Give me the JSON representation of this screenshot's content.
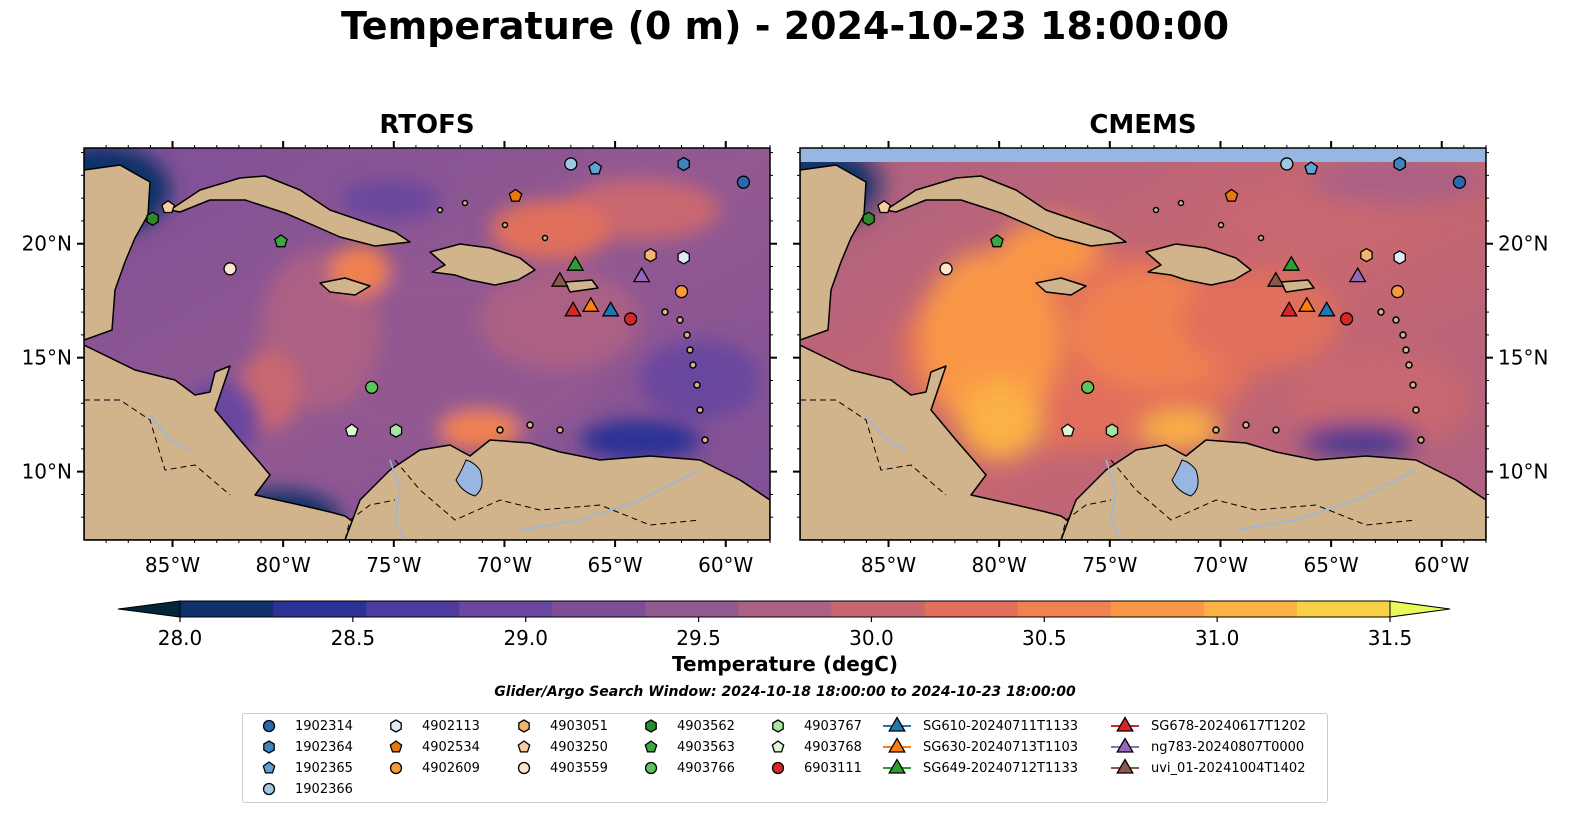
{
  "figure": {
    "title": "Temperature (0 m) - 2024-10-23 18:00:00",
    "search_window": "Glider/Argo Search Window: 2024-10-18 18:00:00 to 2024-10-23 18:00:00"
  },
  "panels": [
    {
      "title": "RTOFS"
    },
    {
      "title": "CMEMS"
    }
  ],
  "map": {
    "lon_range": [
      -89,
      -58
    ],
    "lat_range": [
      7,
      24.2
    ],
    "lon_ticks": [
      "85°W",
      "80°W",
      "75°W",
      "70°W",
      "65°W",
      "60°W"
    ],
    "lon_tick_values": [
      -85,
      -80,
      -75,
      -70,
      -65,
      -60
    ],
    "lat_ticks": [
      "10°N",
      "15°N",
      "20°N"
    ],
    "lat_tick_values": [
      10,
      15,
      20
    ],
    "colors": {
      "land": "#d2b48c",
      "lakes": "#97b6e1",
      "coast": "#000000"
    }
  },
  "colorbar": {
    "label": "Temperature (degC)",
    "ticks": [
      "28.0",
      "28.5",
      "29.0",
      "29.5",
      "30.0",
      "30.5",
      "31.0",
      "31.5"
    ],
    "range": [
      28.0,
      31.5
    ],
    "colors": [
      "#03263a",
      "#0f306b",
      "#2b3195",
      "#4e3b9f",
      "#6a479f",
      "#7e4f97",
      "#935991",
      "#ab6184",
      "#c9676f",
      "#e06f5c",
      "#f08150",
      "#f99746",
      "#fbb144",
      "#f6d046",
      "#e7fa5a"
    ]
  },
  "legend": {
    "items": [
      {
        "label": "1902314",
        "marker": "circle",
        "color": "#2a69b0"
      },
      {
        "label": "1902364",
        "marker": "hexagon",
        "color": "#3e85c0"
      },
      {
        "label": "1902365",
        "marker": "pentagon",
        "color": "#5fa2d8"
      },
      {
        "label": "1902366",
        "marker": "circle",
        "color": "#9ecae1"
      },
      {
        "label": "4902113",
        "marker": "hexagon",
        "color": "#deebf7"
      },
      {
        "label": "4902534",
        "marker": "pentagon",
        "color": "#e6780f"
      },
      {
        "label": "4902609",
        "marker": "circle",
        "color": "#f79a3a"
      },
      {
        "label": "4903051",
        "marker": "hexagon",
        "color": "#f8b26f"
      },
      {
        "label": "4903250",
        "marker": "pentagon",
        "color": "#fbcba0"
      },
      {
        "label": "4903559",
        "marker": "circle",
        "color": "#fde6cf"
      },
      {
        "label": "4903562",
        "marker": "hexagon",
        "color": "#2f8a2f"
      },
      {
        "label": "4903563",
        "marker": "pentagon",
        "color": "#3fa63f"
      },
      {
        "label": "4903766",
        "marker": "circle",
        "color": "#5cc45c"
      },
      {
        "label": "4903767",
        "marker": "hexagon",
        "color": "#a7e3a1"
      },
      {
        "label": "4903768",
        "marker": "pentagon",
        "color": "#def6d6"
      },
      {
        "label": "6903111",
        "marker": "circle",
        "color": "#d62728"
      },
      {
        "label": "SG610-20240711T1133",
        "marker": "triangle-line",
        "color": "#1f77b4"
      },
      {
        "label": "SG630-20240713T1103",
        "marker": "triangle-line",
        "color": "#ff7f0e"
      },
      {
        "label": "SG649-20240712T1133",
        "marker": "triangle-line",
        "color": "#2ca02c"
      },
      {
        "label": "SG678-20240617T1202",
        "marker": "triangle-line",
        "color": "#d62728"
      },
      {
        "label": "ng783-20240807T0000",
        "marker": "triangle-line",
        "color": "#9467bd"
      },
      {
        "label": "uvi_01-20241004T1402",
        "marker": "triangle-line",
        "color": "#8c564b"
      }
    ]
  },
  "markers": [
    {
      "label": "1902314",
      "lon": -59.2,
      "lat": 22.7
    },
    {
      "label": "1902364",
      "lon": -61.9,
      "lat": 23.5
    },
    {
      "label": "1902365",
      "lon": -65.9,
      "lat": 23.3
    },
    {
      "label": "1902366",
      "lon": -67.0,
      "lat": 23.5
    },
    {
      "label": "4902113",
      "lon": -61.9,
      "lat": 19.4
    },
    {
      "label": "4902534",
      "lon": -69.5,
      "lat": 22.1
    },
    {
      "label": "4902609",
      "lon": -62.0,
      "lat": 17.9
    },
    {
      "label": "4903051",
      "lon": -63.4,
      "lat": 19.5
    },
    {
      "label": "4903250",
      "lon": -85.2,
      "lat": 21.6
    },
    {
      "label": "4903559",
      "lon": -82.4,
      "lat": 18.9
    },
    {
      "label": "4903562",
      "lon": -85.9,
      "lat": 21.1
    },
    {
      "label": "4903563",
      "lon": -80.1,
      "lat": 20.1
    },
    {
      "label": "4903766",
      "lon": -76.0,
      "lat": 13.7
    },
    {
      "label": "4903767",
      "lon": -74.9,
      "lat": 11.8
    },
    {
      "label": "4903768",
      "lon": -76.9,
      "lat": 11.8
    },
    {
      "label": "6903111",
      "lon": -64.3,
      "lat": 16.7
    },
    {
      "label": "SG610-20240711T1133",
      "lon": -65.2,
      "lat": 17.1
    },
    {
      "label": "SG630-20240713T1103",
      "lon": -66.1,
      "lat": 17.3
    },
    {
      "label": "SG649-20240712T1133",
      "lon": -66.8,
      "lat": 19.1
    },
    {
      "label": "SG678-20240617T1202",
      "lon": -66.9,
      "lat": 17.1
    },
    {
      "label": "ng783-20240807T0000",
      "lon": -63.8,
      "lat": 18.6
    },
    {
      "label": "uvi_01-20241004T1402",
      "lon": -67.5,
      "lat": 18.4
    }
  ]
}
